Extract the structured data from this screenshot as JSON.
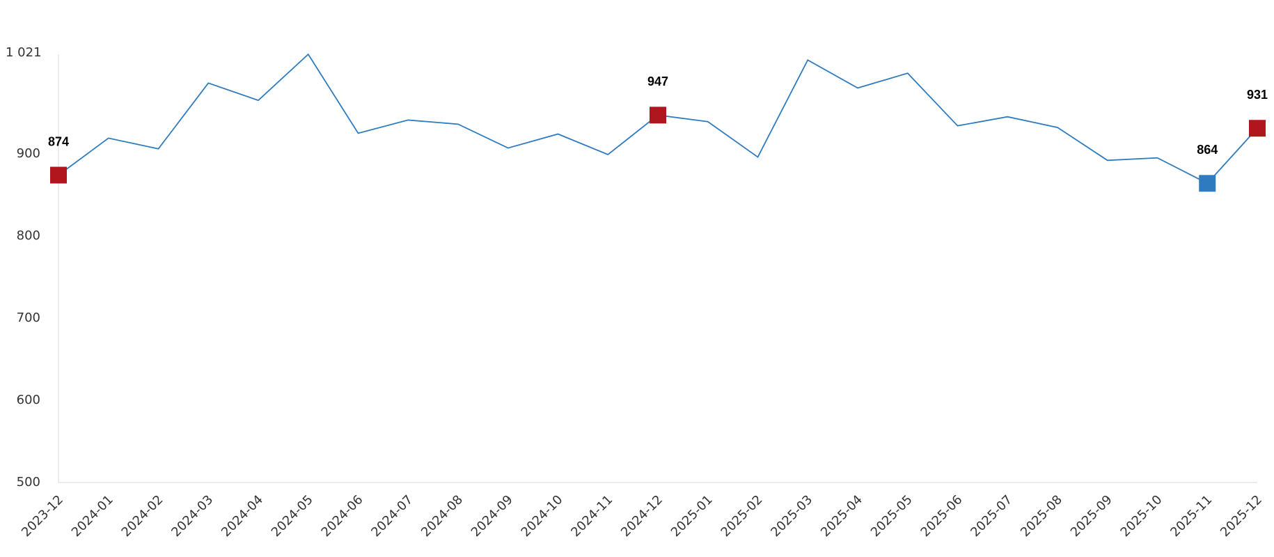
{
  "chart_data": {
    "type": "line",
    "categories": [
      "2023-12",
      "2024-01",
      "2024-02",
      "2024-03",
      "2024-04",
      "2024-05",
      "2024-06",
      "2024-07",
      "2024-08",
      "2024-09",
      "2024-10",
      "2024-11",
      "2024-12",
      "2025-01",
      "2025-02",
      "2025-03",
      "2025-04",
      "2025-05",
      "2025-06",
      "2025-07",
      "2025-08",
      "2025-09",
      "2025-10",
      "2025-11",
      "2025-12"
    ],
    "series": [
      {
        "color": "#2e7bbf",
        "values": [
          874,
          919,
          906,
          986,
          965,
          1021,
          925,
          941,
          936,
          907,
          924,
          899,
          947,
          939,
          896,
          1014,
          980,
          998,
          934,
          945,
          932,
          892,
          895,
          864,
          931
        ]
      }
    ],
    "highlights": [
      {
        "index": 0,
        "color": "#b0161e"
      },
      {
        "index": 12,
        "color": "#b0161e"
      },
      {
        "index": 23,
        "color": "#2e7bbf"
      },
      {
        "index": 24,
        "color": "#b0161e"
      }
    ],
    "ylim": [
      500,
      1021
    ],
    "yticks": [
      500,
      600,
      700,
      800,
      900,
      {
        "value": 1021,
        "label": "1 021"
      }
    ],
    "grid": false
  }
}
